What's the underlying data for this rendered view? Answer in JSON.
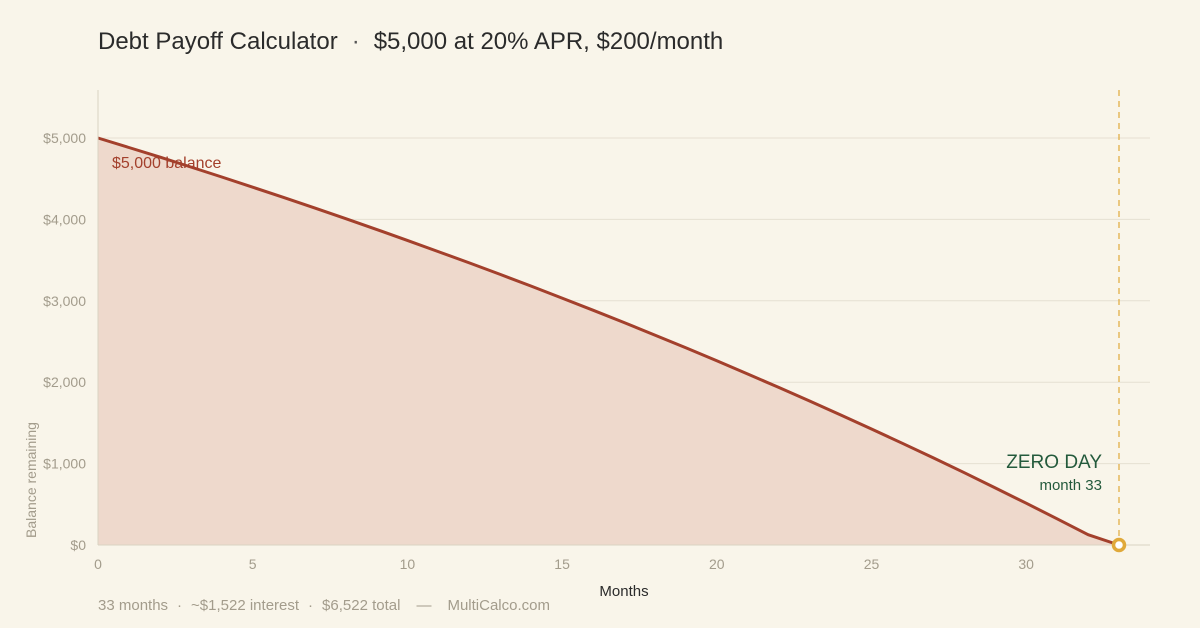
{
  "header": {
    "title": "Debt Payoff Calculator",
    "separator": "·",
    "subtitle": "$5,000 at 20% APR, $200/month"
  },
  "footer": {
    "months": "33 months",
    "interest": "~$1,522 interest",
    "total": "$6,522 total",
    "site": "MultiCalco.com",
    "dot": "·",
    "dash": "—"
  },
  "colors": {
    "background": "#f9f5ea",
    "line": "#a3402c",
    "area": "#eed9cc",
    "marker": "#e0a93a",
    "zero_day": "#245a3c",
    "grid": "#e6e0d2"
  },
  "chart_data": {
    "type": "area",
    "title": "Debt Payoff Calculator · $5,000 at 20% APR, $200/month",
    "xlabel": "Months",
    "ylabel": "Balance remaining",
    "xlim": [
      0,
      34
    ],
    "ylim": [
      0,
      5600
    ],
    "x_ticks": [
      0,
      5,
      10,
      15,
      20,
      25,
      30
    ],
    "y_ticks": [
      0,
      1000,
      2000,
      3000,
      4000,
      5000
    ],
    "y_tick_labels": [
      "$0",
      "$1,000",
      "$2,000",
      "$3,000",
      "$4,000",
      "$5,000"
    ],
    "grid": true,
    "series": [
      {
        "name": "Balance",
        "x": [
          0,
          1,
          2,
          3,
          4,
          5,
          6,
          7,
          8,
          9,
          10,
          11,
          12,
          13,
          14,
          15,
          16,
          17,
          18,
          19,
          20,
          21,
          22,
          23,
          24,
          25,
          26,
          27,
          28,
          29,
          30,
          31,
          32,
          33
        ],
        "values": [
          5000,
          4883,
          4765,
          4644,
          4521,
          4396,
          4270,
          4141,
          4010,
          3877,
          3742,
          3605,
          3466,
          3324,
          3180,
          3033,
          2884,
          2733,
          2579,
          2422,
          2263,
          2101,
          1936,
          1769,
          1598,
          1425,
          1249,
          1070,
          888,
          702,
          514,
          322,
          127,
          0
        ]
      }
    ],
    "annotations": {
      "start_label": "$5,000 balance",
      "zero_day_label": "ZERO DAY",
      "zero_day_month_label": "month 33",
      "zero_day_month": 33
    }
  }
}
